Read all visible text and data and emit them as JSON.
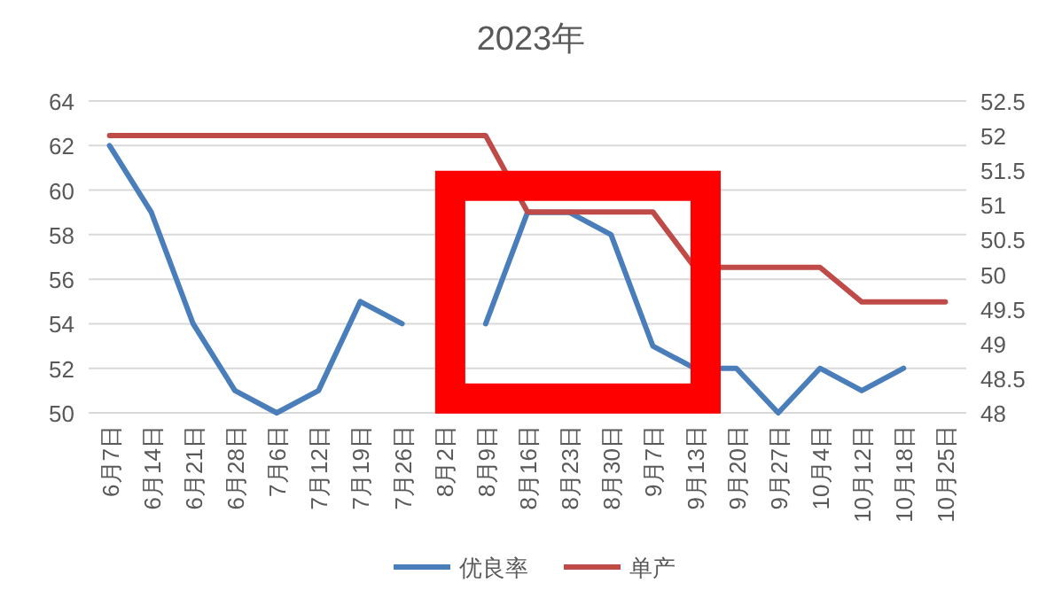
{
  "chart_data": {
    "type": "line",
    "title": "2023年",
    "categories": [
      "6月7日",
      "6月14日",
      "6月21日",
      "6月28日",
      "7月6日",
      "7月12日",
      "7月19日",
      "7月26日",
      "8月2日",
      "8月9日",
      "8月16日",
      "8月23日",
      "8月30日",
      "9月7日",
      "9月13日",
      "9月20日",
      "9月27日",
      "10月4日",
      "10月12日",
      "10月18日",
      "10月25日"
    ],
    "series": [
      {
        "name": "优良率",
        "color": "#4a7ebb",
        "values": [
          62,
          59,
          54,
          51,
          50,
          51,
          55,
          54,
          null,
          54,
          59,
          59,
          58,
          53,
          52,
          52,
          50,
          52,
          51,
          52,
          null
        ]
      },
      {
        "name": "单产",
        "color": "#be4b48",
        "axis": "y2",
        "values": [
          52,
          52,
          52,
          52,
          52,
          52,
          52,
          52,
          52,
          52,
          50.9,
          50.9,
          50.9,
          50.9,
          50.1,
          50.1,
          50.1,
          50.1,
          49.6,
          49.6,
          49.6
        ]
      }
    ],
    "ylim": [
      50,
      64
    ],
    "yticks": [
      50,
      52,
      54,
      56,
      58,
      60,
      62,
      64
    ],
    "y2lim": [
      48,
      52.5
    ],
    "y2ticks": [
      48,
      48.5,
      49,
      49.5,
      50,
      50.5,
      51,
      51.5,
      52,
      52.5
    ],
    "grid": "y",
    "legend": "bottom",
    "marker": "none",
    "line_style": "solid"
  }
}
